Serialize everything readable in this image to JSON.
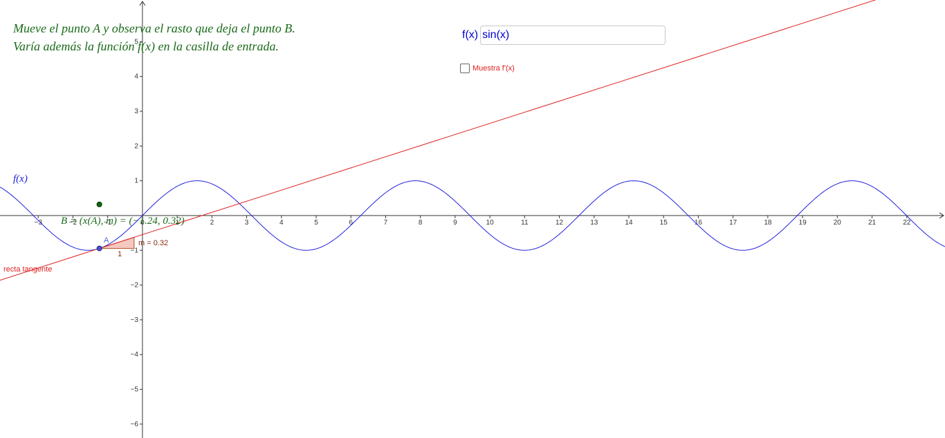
{
  "instructions": {
    "line1": "Mueve el punto A y observa el rasto que deja el punto B.",
    "line2": "Varía además la función f(x) en la casilla de entrada."
  },
  "input": {
    "label": "f(x)",
    "value": "sin(x)"
  },
  "checkbox": {
    "label": "Muestra f'(x)",
    "checked": false
  },
  "graph": {
    "function_label": "f(x)",
    "tangent_label": "recta tangente",
    "point_a_label": "A",
    "point_b_label": "B = (x(A), m) = (−1.24, 0.32)",
    "slope_label": "m = 0.32",
    "slope_run_label": "1",
    "point_a": {
      "x": -1.24,
      "y": -0.946
    },
    "point_b": {
      "x": -1.24,
      "y": 0.32
    },
    "slope": 0.32,
    "colors": {
      "function": "#2020dd",
      "tangent": "#e02020",
      "point_b": "#0b6b0b",
      "text_green": "#1a6b1a",
      "slope_fill": "#f5c8c0"
    }
  },
  "chart_data": {
    "type": "line",
    "series": [
      {
        "name": "f(x)",
        "expression": "sin(x)"
      },
      {
        "name": "recta tangente",
        "expression": "0.32(x + 1.24) - 0.946"
      }
    ],
    "xlim": [
      -4.1,
      23.1
    ],
    "ylim": [
      -6.4,
      6.2
    ],
    "x_ticks": [
      -3,
      -2,
      -1,
      0,
      1,
      2,
      3,
      4,
      5,
      6,
      7,
      8,
      9,
      10,
      11,
      12,
      13,
      14,
      15,
      16,
      17,
      18,
      19,
      20,
      21,
      22
    ],
    "y_ticks": [
      -6,
      -5,
      -4,
      -3,
      -2,
      -1,
      1,
      2,
      3,
      4,
      5
    ],
    "grid": false
  }
}
